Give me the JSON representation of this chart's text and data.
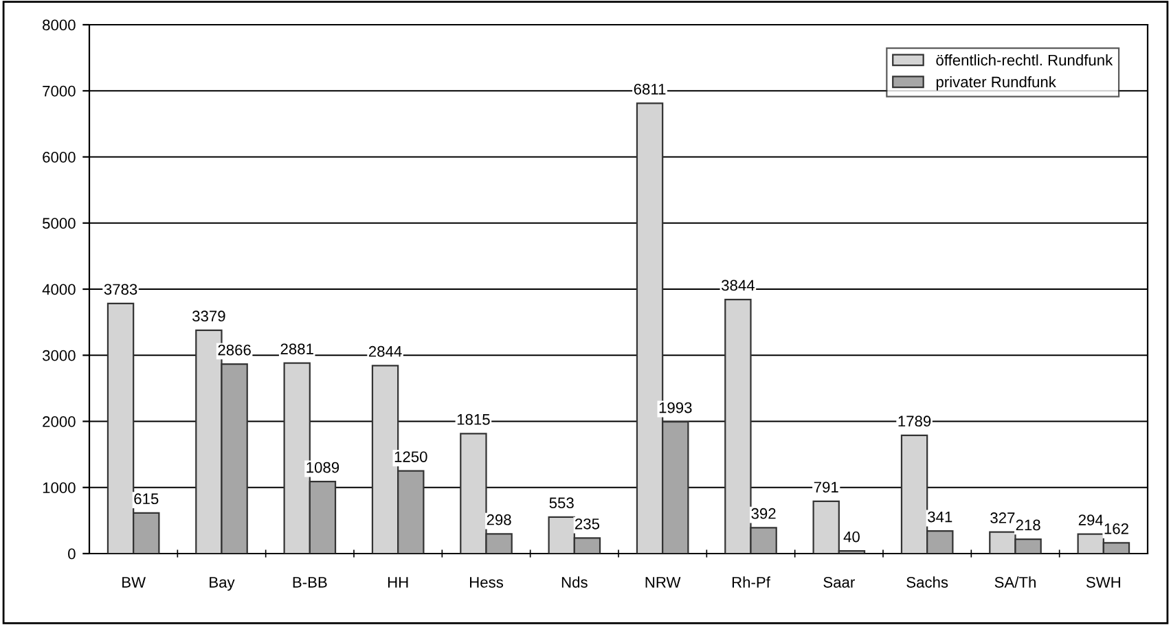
{
  "chart_data": {
    "type": "bar",
    "categories": [
      "BW",
      "Bay",
      "B-BB",
      "HH",
      "Hess",
      "Nds",
      "NRW",
      "Rh-Pf",
      "Saar",
      "Sachs",
      "SA/Th",
      "SWH"
    ],
    "series": [
      {
        "name": "öffentlich-rechtl. Rundfunk",
        "color": "#d4d4d4",
        "values": [
          3783,
          3379,
          2881,
          2844,
          1815,
          553,
          6811,
          3844,
          791,
          1789,
          327,
          294
        ]
      },
      {
        "name": "privater Rundfunk",
        "color": "#a6a6a6",
        "values": [
          615,
          2866,
          1089,
          1250,
          298,
          235,
          1993,
          392,
          40,
          341,
          218,
          162
        ]
      }
    ],
    "ylim": [
      0,
      8000
    ],
    "yticks": [
      0,
      1000,
      2000,
      3000,
      4000,
      5000,
      6000,
      7000,
      8000
    ],
    "grid": "y",
    "legend": "top right",
    "data_labels": true
  }
}
